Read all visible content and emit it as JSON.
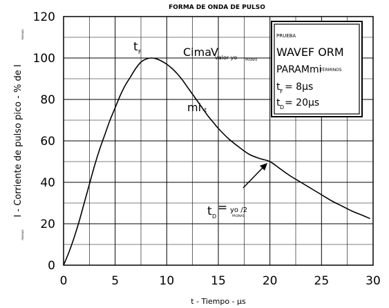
{
  "chart_data": {
    "type": "line",
    "title": "FORMA DE ONDA DE PULSO",
    "xlabel": "t - Tiempo - µs",
    "ylabel": "I - Corriente de pulso pico - % de I",
    "ylabel_sub": "PÁGINAS",
    "top_left_sub": "PÁGINAS",
    "xlim": [
      0,
      30
    ],
    "ylim": [
      0,
      120
    ],
    "xticks": [
      0,
      5,
      10,
      15,
      20,
      25,
      30
    ],
    "yticks": [
      0,
      20,
      40,
      60,
      80,
      100,
      120
    ],
    "grid": true,
    "series": [
      {
        "x": [
          0,
          0.5,
          1,
          1.5,
          2,
          2.5,
          3,
          3.5,
          4,
          4.5,
          5,
          5.5,
          6,
          6.5,
          7,
          7.5,
          8,
          8.5,
          9,
          9.5,
          10,
          10.5,
          11,
          11.5,
          12,
          12.5,
          13,
          13.5,
          14,
          14.5,
          15,
          16,
          17,
          18,
          19,
          20,
          21,
          22,
          23,
          24,
          25,
          26,
          27,
          28,
          29,
          29.7
        ],
        "y": [
          0,
          6,
          13,
          21,
          30,
          39,
          48,
          56,
          63,
          70,
          76,
          82,
          87,
          91,
          95,
          98,
          99.5,
          100,
          99.6,
          98.5,
          97,
          95,
          92.5,
          89.5,
          86,
          82.5,
          79,
          75.5,
          72,
          69,
          66,
          61,
          57,
          53.5,
          51.5,
          50,
          46.5,
          43,
          40,
          37,
          34,
          31,
          28.5,
          26,
          24,
          22.5
        ]
      }
    ],
    "annotations": {
      "tf_label": "t",
      "tf_sub": "F",
      "cima_label": "Cima",
      "cima_v": "V",
      "cima_sub": "valor yo",
      "cima_sub2": "PÁGINAS",
      "mit_label": "mi",
      "mit_sub": "-t",
      "td_label": "t",
      "td_sub": "D",
      "td_eq": "=",
      "td_value": "yo /2",
      "td_value_sub": "PÁGINAS"
    },
    "legend_box": {
      "line1": "PRUEBA",
      "line2": "WAVEF ORM",
      "line3": "PARAMmi",
      "line3_sub": "TÉRMINOS",
      "line4_a": "t",
      "line4_sub": "F",
      "line4_b": "= 8µs",
      "line5_a": "t",
      "line5_sub": "D",
      "line5_b": "= 20µs"
    }
  }
}
